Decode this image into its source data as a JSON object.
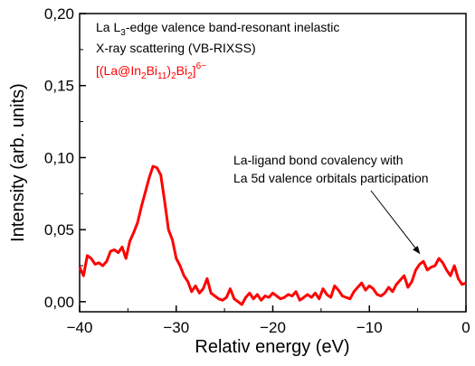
{
  "chart_data": {
    "type": "line",
    "xlabel": "Relativ energy (eV)",
    "ylabel": "Intensity (arb. units)",
    "xlim": [
      -40,
      0
    ],
    "ylim": [
      -0.007,
      0.2
    ],
    "x_ticks": [
      -40,
      -30,
      -20,
      -10,
      0
    ],
    "x_tick_labels": [
      "−40",
      "−30",
      "−20",
      "−10",
      "0"
    ],
    "y_ticks": [
      0.0,
      0.05,
      0.1,
      0.15,
      0.2
    ],
    "y_tick_labels": [
      "0,00",
      "0,05",
      "0,10",
      "0,15",
      "0,20"
    ],
    "grid": false,
    "legend": {
      "line1_prefix": "La L",
      "line1_sub": "3",
      "line1_suffix": "-edge valence band-resonant inelastic",
      "line2": "X-ray scattering (VB-RIXSS)",
      "formula_open": "[(La@In",
      "formula_sub1": "2",
      "formula_mid1": "Bi",
      "formula_sub2": "11",
      "formula_mid2": ")",
      "formula_sub3": "2",
      "formula_mid3": "Bi",
      "formula_sub4": "2",
      "formula_close": "]",
      "formula_sup": "6−",
      "formula_color": "#ff0000"
    },
    "annotation": {
      "line1": "La-ligand bond covalency with",
      "line2": "La 5d valence orbitals participation",
      "arrow_x": -4.8,
      "arrow_y": 0.031
    },
    "series": [
      {
        "color": "#ff0000",
        "x": [
          -40,
          -39.6,
          -39.2,
          -38.8,
          -38.4,
          -38,
          -37.6,
          -37.2,
          -36.8,
          -36.4,
          -36,
          -35.6,
          -35.2,
          -34.8,
          -34.4,
          -34,
          -33.6,
          -33.2,
          -32.8,
          -32.4,
          -32,
          -31.6,
          -31.2,
          -30.8,
          -30.4,
          -30,
          -29.6,
          -29.2,
          -28.8,
          -28.4,
          -28,
          -27.6,
          -27.2,
          -26.8,
          -26.4,
          -26,
          -25.6,
          -25.2,
          -24.8,
          -24.4,
          -24,
          -23.6,
          -23.2,
          -22.8,
          -22.4,
          -22,
          -21.6,
          -21.2,
          -20.8,
          -20.4,
          -20,
          -19.6,
          -19.2,
          -18.8,
          -18.4,
          -18,
          -17.6,
          -17.2,
          -16.8,
          -16.4,
          -16,
          -15.6,
          -15.2,
          -14.8,
          -14.4,
          -14,
          -13.6,
          -13.2,
          -12.8,
          -12.4,
          -12,
          -11.6,
          -11.2,
          -10.8,
          -10.4,
          -10,
          -9.6,
          -9.2,
          -8.8,
          -8.4,
          -8,
          -7.6,
          -7.2,
          -6.8,
          -6.4,
          -6,
          -5.6,
          -5.2,
          -4.8,
          -4.4,
          -4,
          -3.6,
          -3.2,
          -2.8,
          -2.4,
          -2,
          -1.6,
          -1.2,
          -0.8,
          -0.4,
          0
        ],
        "y": [
          0.024,
          0.018,
          0.032,
          0.03,
          0.026,
          0.027,
          0.025,
          0.028,
          0.035,
          0.036,
          0.034,
          0.038,
          0.03,
          0.042,
          0.048,
          0.055,
          0.066,
          0.076,
          0.086,
          0.094,
          0.093,
          0.088,
          0.07,
          0.05,
          0.043,
          0.03,
          0.025,
          0.018,
          0.014,
          0.007,
          0.011,
          0.006,
          0.009,
          0.016,
          0.006,
          0.004,
          0.002,
          0.001,
          0.003,
          0.009,
          0.002,
          0.0,
          -0.002,
          0.003,
          0.006,
          0.002,
          0.005,
          0.001,
          0.004,
          0.003,
          0.006,
          0.004,
          0.002,
          0.003,
          0.005,
          0.004,
          0.007,
          0.001,
          0.003,
          0.005,
          0.003,
          0.006,
          0.002,
          0.009,
          0.005,
          0.003,
          0.011,
          0.008,
          0.004,
          0.003,
          0.002,
          0.007,
          0.01,
          0.013,
          0.008,
          0.011,
          0.009,
          0.005,
          0.004,
          0.006,
          0.01,
          0.007,
          0.012,
          0.015,
          0.018,
          0.01,
          0.014,
          0.022,
          0.026,
          0.028,
          0.022,
          0.024,
          0.025,
          0.03,
          0.027,
          0.022,
          0.018,
          0.025,
          0.016,
          0.012,
          0.013
        ]
      }
    ]
  }
}
